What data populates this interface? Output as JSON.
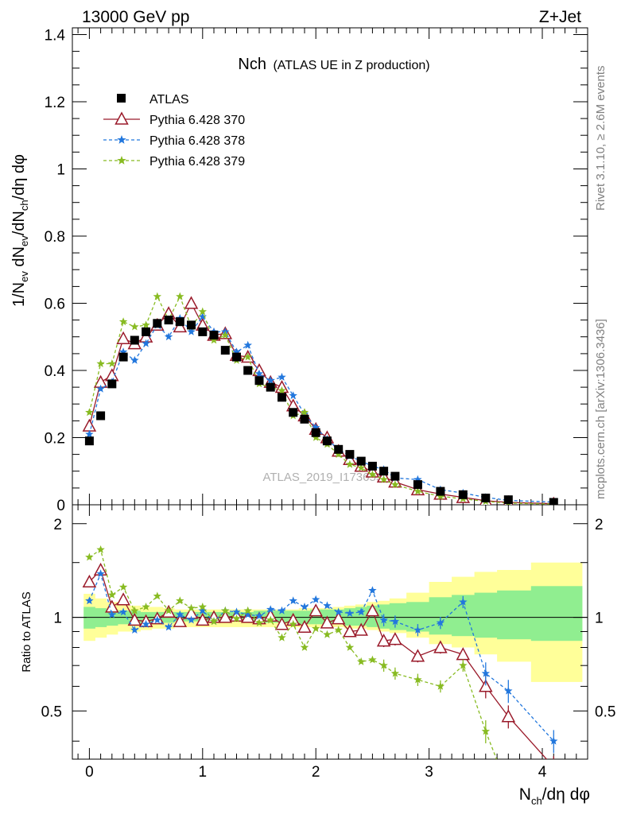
{
  "header": {
    "energy_label": "13000 GeV pp",
    "process_label": "Z+Jet"
  },
  "side_labels": {
    "rivet": "Rivet 3.1.10, ≥ 2.6M events",
    "mcplots": "mcplots.cern.ch [arXiv:1306.3436]"
  },
  "watermark": "ATLAS_2019_I1736531",
  "chart_data": {
    "type": "scatter",
    "title_main": "Nch",
    "title_sub": "(ATLAS UE in Z production)",
    "xlabel": "N_ch/dη dφ",
    "ylabel": "1/N_ev dN_ev/dN_ch/dη dφ",
    "ratio_ylabel": "Ratio to ATLAS",
    "xlim": [
      -0.15,
      4.4
    ],
    "ylim": [
      0,
      1.42
    ],
    "ratio_ylim": [
      0.35,
      2.3
    ],
    "ratio_scale": "log",
    "x_ticks": [
      "0",
      "1",
      "2",
      "3",
      "4"
    ],
    "y_ticks": [
      "0",
      "0.2",
      "0.4",
      "0.6",
      "0.8",
      "1",
      "1.2",
      "1.4"
    ],
    "ratio_y_ticks": [
      "0.5",
      "1",
      "2"
    ],
    "legend_position": "top-left",
    "colors": {
      "atlas": "#000000",
      "p370": "#9a1a2a",
      "p378": "#2277dd",
      "p379": "#88bb22",
      "band_inner": "#90ee90",
      "band_outer": "#ffff99"
    },
    "x": [
      0.0,
      0.1,
      0.2,
      0.3,
      0.4,
      0.5,
      0.6,
      0.7,
      0.8,
      0.9,
      1.0,
      1.1,
      1.2,
      1.3,
      1.4,
      1.5,
      1.6,
      1.7,
      1.8,
      1.9,
      2.0,
      2.1,
      2.2,
      2.3,
      2.4,
      2.5,
      2.6,
      2.7,
      2.9,
      3.1,
      3.3,
      3.5,
      3.7,
      4.1
    ],
    "atlas": [
      0.19,
      0.265,
      0.36,
      0.44,
      0.49,
      0.515,
      0.54,
      0.55,
      0.545,
      0.535,
      0.515,
      0.505,
      0.46,
      0.44,
      0.4,
      0.37,
      0.35,
      0.32,
      0.275,
      0.255,
      0.215,
      0.19,
      0.165,
      0.15,
      0.13,
      0.115,
      0.1,
      0.085,
      0.06,
      0.04,
      0.03,
      0.02,
      0.015,
      0.007
    ],
    "series": [
      {
        "name": "Pythia 6.428 370",
        "values": [
          0.235,
          0.365,
          0.385,
          0.495,
          0.48,
          0.5,
          0.535,
          0.57,
          0.53,
          0.6,
          0.535,
          0.505,
          0.51,
          0.445,
          0.44,
          0.4,
          0.365,
          0.35,
          0.295,
          0.265,
          0.225,
          0.2,
          0.16,
          0.135,
          0.115,
          0.098,
          0.083,
          0.068,
          0.045,
          0.032,
          0.022,
          0.012,
          0.007,
          0.003
        ]
      },
      {
        "name": "Pythia 6.428 378",
        "values": [
          0.21,
          0.345,
          0.365,
          0.455,
          0.43,
          0.48,
          0.535,
          0.5,
          0.555,
          0.515,
          0.56,
          0.515,
          0.515,
          0.455,
          0.475,
          0.39,
          0.37,
          0.38,
          0.325,
          0.27,
          0.23,
          0.195,
          0.165,
          0.145,
          0.13,
          0.115,
          0.105,
          0.08,
          0.075,
          0.045,
          0.035,
          0.022,
          0.013,
          0.008
        ]
      },
      {
        "name": "Pythia 6.428 379",
        "values": [
          0.275,
          0.42,
          0.42,
          0.545,
          0.53,
          0.535,
          0.62,
          0.55,
          0.62,
          0.53,
          0.575,
          0.49,
          0.505,
          0.43,
          0.44,
          0.36,
          0.35,
          0.34,
          0.265,
          0.275,
          0.2,
          0.18,
          0.15,
          0.12,
          0.11,
          0.09,
          0.075,
          0.06,
          0.04,
          0.025,
          0.018,
          0.01,
          0.005,
          0.002
        ]
      }
    ],
    "ratio_series": [
      {
        "name": "Pythia 6.428 370",
        "values": [
          1.3,
          1.42,
          1.08,
          1.14,
          0.98,
          0.97,
          0.99,
          1.04,
          0.97,
          1.03,
          0.98,
          1.0,
          1.0,
          1.01,
          1.0,
          0.99,
          1.01,
          0.95,
          0.98,
          0.93,
          1.05,
          0.96,
          0.99,
          0.9,
          0.91,
          1.05,
          0.84,
          0.85,
          0.75,
          0.8,
          0.76,
          0.6,
          0.48,
          0.33
        ]
      },
      {
        "name": "Pythia 6.428 378",
        "values": [
          1.13,
          1.38,
          1.02,
          1.04,
          0.91,
          0.95,
          0.98,
          0.93,
          1.02,
          0.98,
          1.05,
          0.97,
          1.05,
          1.04,
          1.02,
          1.01,
          1.06,
          1.05,
          1.13,
          1.08,
          1.14,
          1.09,
          1.04,
          1.03,
          1.04,
          1.22,
          0.98,
          0.97,
          0.91,
          0.96,
          1.12,
          0.66,
          0.58,
          0.4
        ]
      },
      {
        "name": "Pythia 6.428 379",
        "values": [
          1.56,
          1.65,
          1.18,
          1.25,
          1.05,
          1.08,
          1.17,
          1.05,
          1.13,
          1.07,
          1.08,
          0.97,
          1.05,
          0.99,
          1.05,
          0.96,
          0.98,
          0.86,
          0.95,
          0.8,
          0.92,
          0.88,
          0.91,
          0.8,
          0.72,
          0.73,
          0.7,
          0.66,
          0.63,
          0.6,
          0.7,
          0.43,
          0.28,
          0.22
        ]
      }
    ],
    "ratio_band_outer": [
      [
        0.84,
        1.19
      ],
      [
        0.86,
        1.15
      ],
      [
        0.88,
        1.12
      ],
      [
        0.9,
        1.1
      ],
      [
        0.9,
        1.09
      ],
      [
        0.91,
        1.08
      ],
      [
        0.92,
        1.08
      ],
      [
        0.92,
        1.07
      ],
      [
        0.93,
        1.06
      ],
      [
        0.93,
        1.06
      ],
      [
        0.93,
        1.06
      ],
      [
        0.93,
        1.06
      ],
      [
        0.93,
        1.06
      ],
      [
        0.93,
        1.06
      ],
      [
        0.93,
        1.06
      ],
      [
        0.93,
        1.06
      ],
      [
        0.93,
        1.06
      ],
      [
        0.93,
        1.06
      ],
      [
        0.93,
        1.06
      ],
      [
        0.93,
        1.07
      ],
      [
        0.93,
        1.07
      ],
      [
        0.93,
        1.07
      ],
      [
        0.93,
        1.08
      ],
      [
        0.92,
        1.09
      ],
      [
        0.92,
        1.1
      ],
      [
        0.91,
        1.12
      ],
      [
        0.9,
        1.13
      ],
      [
        0.89,
        1.15
      ],
      [
        0.86,
        1.2
      ],
      [
        0.82,
        1.3
      ],
      [
        0.8,
        1.35
      ],
      [
        0.76,
        1.4
      ],
      [
        0.72,
        1.42
      ],
      [
        0.62,
        1.5
      ]
    ],
    "ratio_band_inner": [
      [
        0.92,
        1.08
      ],
      [
        0.93,
        1.07
      ],
      [
        0.94,
        1.06
      ],
      [
        0.95,
        1.05
      ],
      [
        0.95,
        1.05
      ],
      [
        0.96,
        1.04
      ],
      [
        0.96,
        1.04
      ],
      [
        0.96,
        1.04
      ],
      [
        0.97,
        1.04
      ],
      [
        0.97,
        1.04
      ],
      [
        0.97,
        1.04
      ],
      [
        0.97,
        1.04
      ],
      [
        0.97,
        1.04
      ],
      [
        0.97,
        1.04
      ],
      [
        0.96,
        1.04
      ],
      [
        0.96,
        1.05
      ],
      [
        0.96,
        1.05
      ],
      [
        0.96,
        1.05
      ],
      [
        0.96,
        1.05
      ],
      [
        0.95,
        1.05
      ],
      [
        0.95,
        1.06
      ],
      [
        0.95,
        1.06
      ],
      [
        0.95,
        1.06
      ],
      [
        0.94,
        1.07
      ],
      [
        0.94,
        1.08
      ],
      [
        0.93,
        1.09
      ],
      [
        0.92,
        1.1
      ],
      [
        0.91,
        1.11
      ],
      [
        0.9,
        1.12
      ],
      [
        0.88,
        1.16
      ],
      [
        0.87,
        1.18
      ],
      [
        0.86,
        1.2
      ],
      [
        0.85,
        1.22
      ],
      [
        0.84,
        1.26
      ]
    ]
  }
}
